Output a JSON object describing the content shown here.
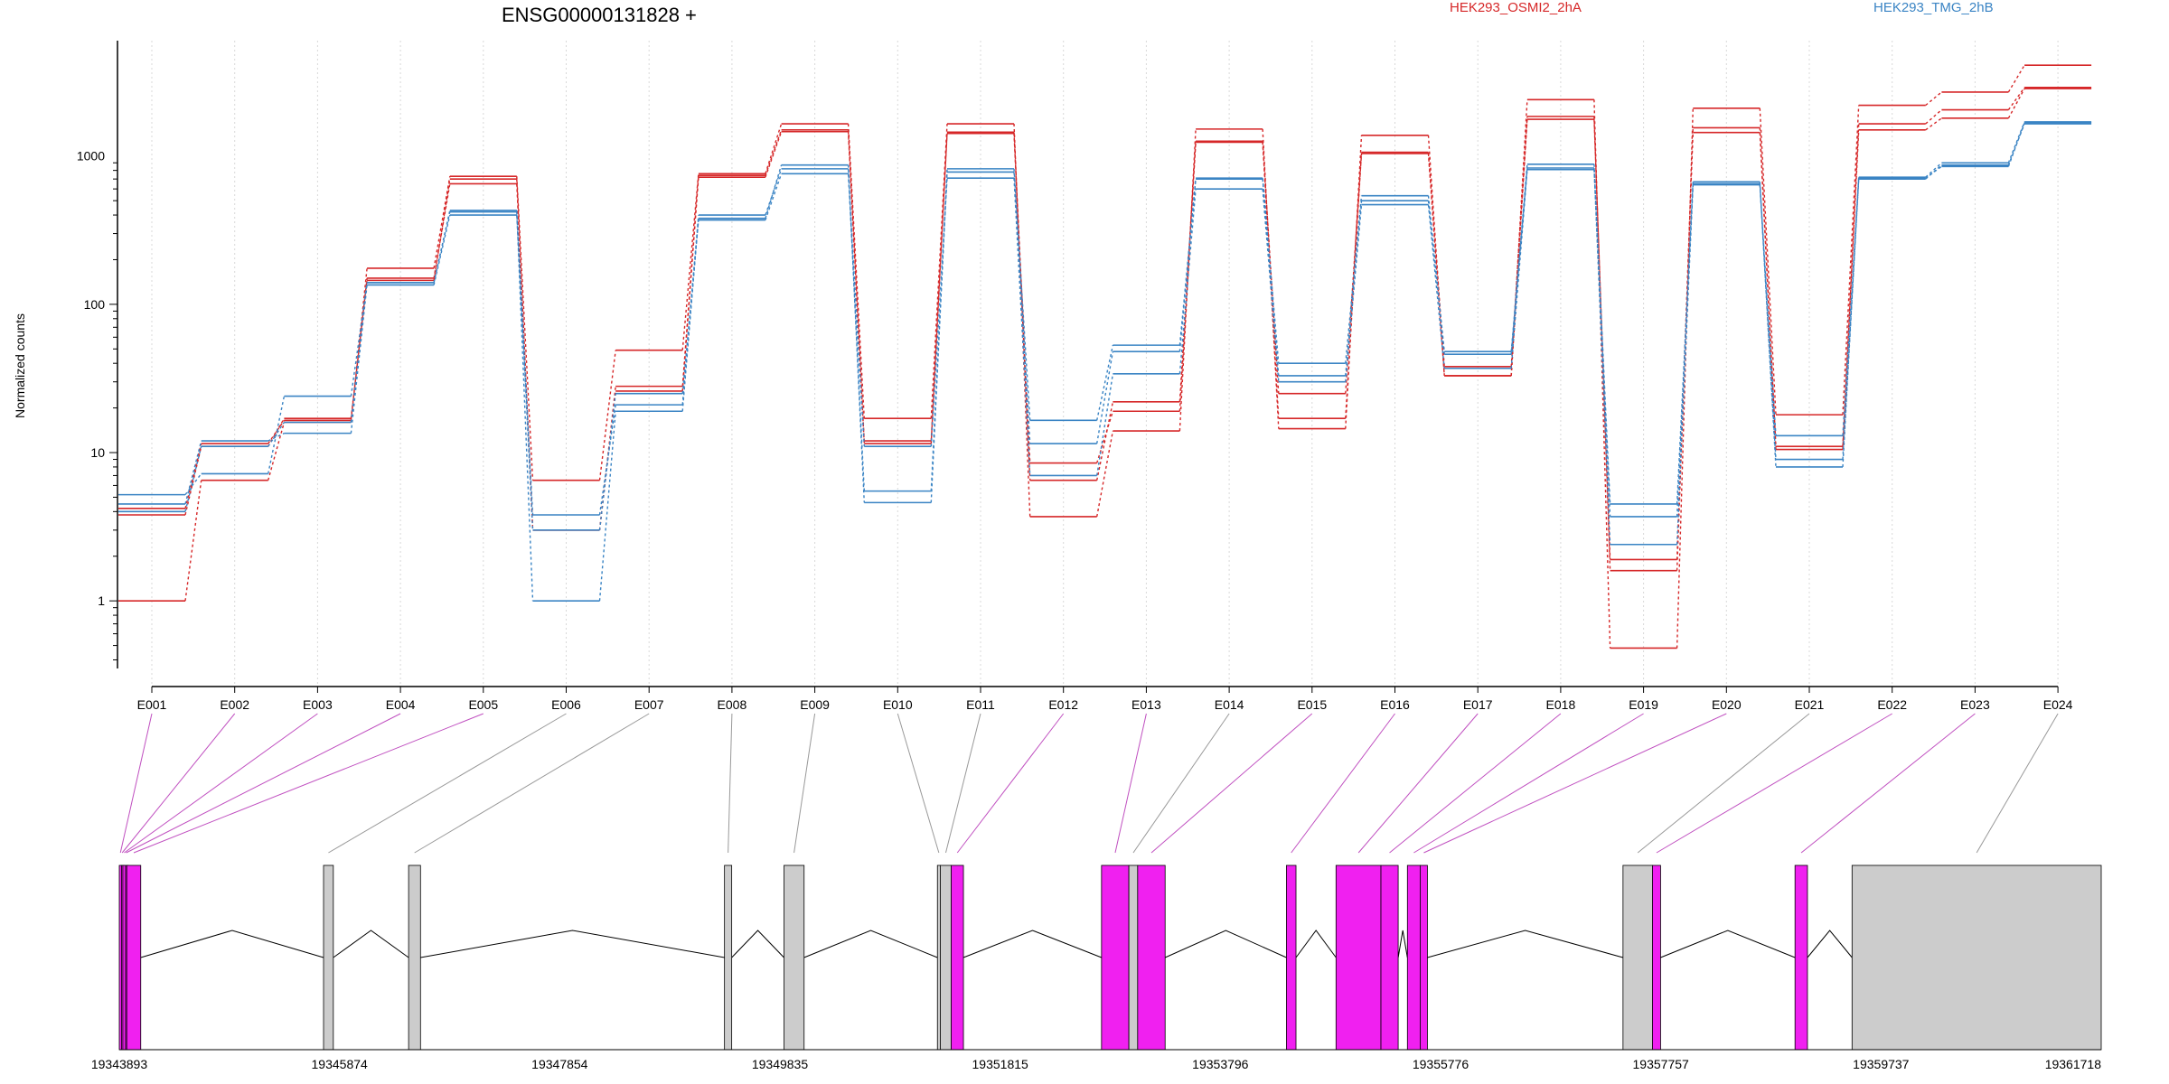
{
  "title": "ENSG00000131828 +",
  "legend": [
    {
      "name": "HEK293_OSMI2_2hA",
      "color": "#d62728"
    },
    {
      "name": "HEK293_TMG_2hB",
      "color": "#3a84c4"
    }
  ],
  "chart_data": {
    "type": "line",
    "scale": "log",
    "ylabel": "Normalized counts",
    "xlabel": "",
    "ylim": [
      0.35,
      6000
    ],
    "yticks": [
      1,
      10,
      100,
      1000
    ],
    "ytick_labels": [
      "1",
      "10",
      "100",
      "1000"
    ],
    "categories": [
      "E001",
      "E002",
      "E003",
      "E004",
      "E005",
      "E006",
      "E007",
      "E008",
      "E009",
      "E010",
      "E011",
      "E012",
      "E013",
      "E014",
      "E015",
      "E016",
      "E017",
      "E018",
      "E019",
      "E020",
      "E021",
      "E022",
      "E023",
      "E024"
    ],
    "grid": "vertical dotted at each exon",
    "series": [
      {
        "group": "HEK293_OSMI2_2hA",
        "color": "#d62728",
        "values": [
          1.0,
          6.5,
          16,
          175,
          730,
          6.5,
          49,
          760,
          1650,
          17,
          1650,
          3.7,
          14,
          1520,
          14.5,
          1380,
          33,
          2400,
          0.48,
          2100,
          18,
          2200,
          2700,
          4100
        ]
      },
      {
        "group": "HEK293_OSMI2_2hA",
        "color": "#d62728",
        "values": [
          3.8,
          11,
          17,
          145,
          700,
          3.0,
          28,
          740,
          1500,
          12,
          1450,
          6.5,
          22,
          1260,
          17,
          1060,
          38,
          1850,
          1.6,
          1550,
          11,
          1650,
          2050,
          2900
        ]
      },
      {
        "group": "HEK293_OSMI2_2hA",
        "color": "#d62728",
        "values": [
          4.2,
          11.5,
          16.5,
          150,
          650,
          3.0,
          26,
          720,
          1460,
          11.5,
          1420,
          8.5,
          19,
          1240,
          25,
          1040,
          33,
          1770,
          1.9,
          1440,
          10.5,
          1500,
          1800,
          2850
        ]
      },
      {
        "group": "HEK293_TMG_2hB",
        "color": "#3a84c4",
        "values": [
          5.2,
          7.2,
          24,
          140,
          430,
          1.0,
          19,
          380,
          870,
          4.6,
          820,
          16.5,
          53,
          710,
          40,
          540,
          48,
          880,
          4.5,
          670,
          8.0,
          720,
          900,
          1700
        ]
      },
      {
        "group": "HEK293_TMG_2hB",
        "color": "#3a84c4",
        "values": [
          4.5,
          12,
          13.5,
          135,
          400,
          3.8,
          21,
          400,
          820,
          5.5,
          780,
          11.5,
          48,
          700,
          33,
          500,
          46,
          830,
          3.7,
          650,
          9.0,
          700,
          870,
          1650
        ]
      },
      {
        "group": "HEK293_TMG_2hB",
        "color": "#3a84c4",
        "values": [
          4.0,
          11,
          16,
          140,
          420,
          3.0,
          25,
          370,
          760,
          11,
          710,
          7.0,
          34,
          600,
          30,
          470,
          37,
          810,
          2.4,
          640,
          13,
          710,
          850,
          1680
        ]
      }
    ]
  },
  "gene_model": {
    "coord_labels": [
      "19343893",
      "19345874",
      "19347854",
      "19349835",
      "19351815",
      "19353796",
      "19355776",
      "19357757",
      "19359737",
      "19361718"
    ],
    "coord_range": [
      19343893,
      19361718
    ],
    "exons": [
      {
        "id": "E001",
        "start": 19343893,
        "end": 19343913,
        "significant": true
      },
      {
        "id": "E002",
        "start": 19343913,
        "end": 19343925,
        "significant": true
      },
      {
        "id": "E003",
        "start": 19343925,
        "end": 19343950,
        "significant": true
      },
      {
        "id": "E004",
        "start": 19343950,
        "end": 19343960,
        "significant": true
      },
      {
        "id": "E005",
        "start": 19343960,
        "end": 19344086,
        "significant": true
      },
      {
        "id": "E006",
        "start": 19345730,
        "end": 19345818,
        "significant": false
      },
      {
        "id": "E007",
        "start": 19346495,
        "end": 19346602,
        "significant": false
      },
      {
        "id": "E008",
        "start": 19349336,
        "end": 19349401,
        "significant": false
      },
      {
        "id": "E009",
        "start": 19349871,
        "end": 19350052,
        "significant": false
      },
      {
        "id": "E010",
        "start": 19351251,
        "end": 19351277,
        "significant": false
      },
      {
        "id": "E011",
        "start": 19351277,
        "end": 19351375,
        "significant": false
      },
      {
        "id": "E012",
        "start": 19351375,
        "end": 19351485,
        "significant": true
      },
      {
        "id": "E013",
        "start": 19352727,
        "end": 19352973,
        "significant": true
      },
      {
        "id": "E014",
        "start": 19352973,
        "end": 19353052,
        "significant": false
      },
      {
        "id": "E015",
        "start": 19353052,
        "end": 19353299,
        "significant": true
      },
      {
        "id": "E016",
        "start": 19354390,
        "end": 19354476,
        "significant": true
      },
      {
        "id": "E017",
        "start": 19354836,
        "end": 19355240,
        "significant": true
      },
      {
        "id": "E018",
        "start": 19355240,
        "end": 19355395,
        "significant": true
      },
      {
        "id": "E019",
        "start": 19355478,
        "end": 19355593,
        "significant": true
      },
      {
        "id": "E020",
        "start": 19355593,
        "end": 19355658,
        "significant": true
      },
      {
        "id": "E021",
        "start": 19357417,
        "end": 19357682,
        "significant": false
      },
      {
        "id": "E022",
        "start": 19357682,
        "end": 19357755,
        "significant": true
      },
      {
        "id": "E023",
        "start": 19358964,
        "end": 19359076,
        "significant": true
      },
      {
        "id": "E024",
        "start": 19359477,
        "end": 19361718,
        "significant": false
      }
    ],
    "colors": {
      "significant": "#f020f0",
      "not_significant": "#cccccc",
      "intron": "#000000"
    }
  }
}
